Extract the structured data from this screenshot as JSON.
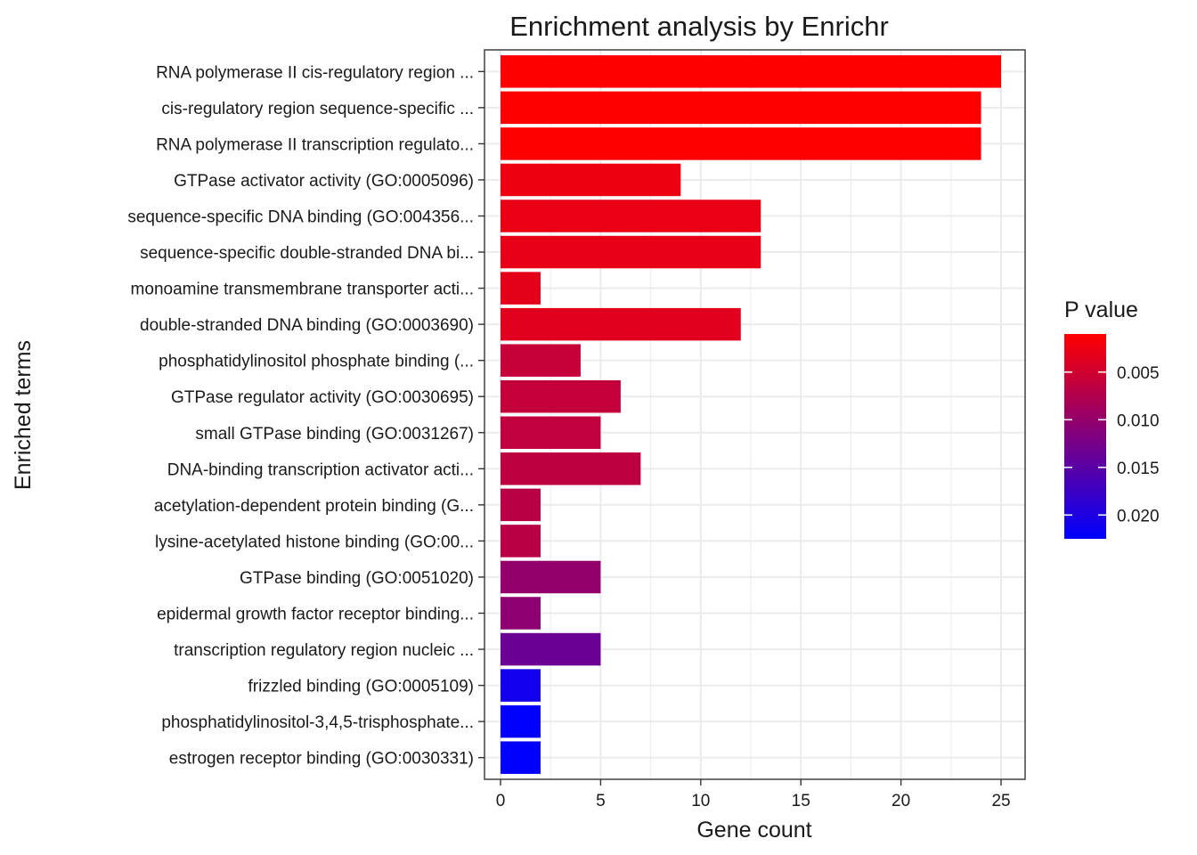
{
  "chart_data": {
    "type": "bar",
    "orientation": "horizontal",
    "title": "Enrichment analysis by Enrichr",
    "xlabel": "Gene count",
    "ylabel": "Enriched terms",
    "xlim": [
      -0.8,
      26.2
    ],
    "xticks": [
      0,
      5,
      10,
      15,
      20,
      25
    ],
    "grid": true,
    "legend_position": "right",
    "colors": {
      "low_p": "#ff0000",
      "high_p": "#0000ff",
      "border": "#333333",
      "grid": "#ebebeb"
    },
    "legend": {
      "title": "P value",
      "range": [
        0.001,
        0.0225
      ],
      "ticks": [
        0.005,
        0.01,
        0.015,
        0.02
      ],
      "tick_labels": [
        "0.005",
        "0.010",
        "0.015",
        "0.020"
      ]
    },
    "bars": [
      {
        "term": "RNA polymerase II cis-regulatory region ...",
        "count": 25,
        "p": 0.0011
      },
      {
        "term": "cis-regulatory region sequence-specific ...",
        "count": 24,
        "p": 0.0012
      },
      {
        "term": "RNA polymerase II transcription regulato...",
        "count": 24,
        "p": 0.0012
      },
      {
        "term": "GTPase activator activity (GO:0005096)",
        "count": 9,
        "p": 0.0025
      },
      {
        "term": "sequence-specific DNA binding (GO:004356...",
        "count": 13,
        "p": 0.0028
      },
      {
        "term": "sequence-specific double-stranded DNA bi...",
        "count": 13,
        "p": 0.003
      },
      {
        "term": "monoamine transmembrane transporter acti...",
        "count": 2,
        "p": 0.0032
      },
      {
        "term": "double-stranded DNA binding (GO:0003690)",
        "count": 12,
        "p": 0.0035
      },
      {
        "term": "phosphatidylinositol phosphate binding (...",
        "count": 4,
        "p": 0.0058
      },
      {
        "term": "GTPase regulator activity (GO:0030695)",
        "count": 6,
        "p": 0.006
      },
      {
        "term": "small GTPase binding (GO:0031267)",
        "count": 5,
        "p": 0.0062
      },
      {
        "term": "DNA-binding transcription activator acti...",
        "count": 7,
        "p": 0.0065
      },
      {
        "term": "acetylation-dependent protein binding (G...",
        "count": 2,
        "p": 0.0068
      },
      {
        "term": "lysine-acetylated histone binding (GO:00...",
        "count": 2,
        "p": 0.0068
      },
      {
        "term": "GTPase binding (GO:0051020)",
        "count": 5,
        "p": 0.01
      },
      {
        "term": "epidermal growth factor receptor binding...",
        "count": 2,
        "p": 0.0105
      },
      {
        "term": "transcription regulatory region nucleic ...",
        "count": 5,
        "p": 0.0135
      },
      {
        "term": "frizzled binding (GO:0005109)",
        "count": 2,
        "p": 0.021
      },
      {
        "term": "phosphatidylinositol-3,4,5-trisphosphate...",
        "count": 2,
        "p": 0.0224
      },
      {
        "term": "estrogen receptor binding (GO:0030331)",
        "count": 2,
        "p": 0.0225
      }
    ]
  }
}
